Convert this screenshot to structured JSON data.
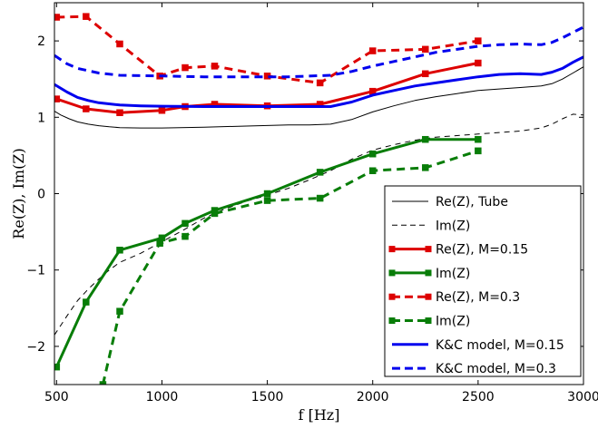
{
  "chart_data": {
    "type": "line",
    "title": "",
    "xlabel": "f [Hz]",
    "ylabel": "Re(Z), Im(Z)",
    "xlim": [
      490,
      3000
    ],
    "ylim": [
      -2.5,
      2.5
    ],
    "x_ticks": [
      "500",
      "1000",
      "1500",
      "2000",
      "2500",
      "3000"
    ],
    "y_ticks": [
      "−2",
      "−1",
      "0",
      "1",
      "2"
    ],
    "grid": false,
    "legend": "bottom-right",
    "series": [
      {
        "name": "Re(Z), Tube",
        "color": "#000000",
        "style": "solid",
        "width": 1,
        "marker": "none",
        "x": [
          490,
          520,
          560,
          600,
          650,
          700,
          750,
          800,
          900,
          1000,
          1200,
          1400,
          1600,
          1700,
          1800,
          1900,
          2000,
          2100,
          2200,
          2300,
          2400,
          2500,
          2600,
          2700,
          2800,
          2850,
          2900,
          2950,
          3000
        ],
        "y": [
          1.08,
          1.03,
          0.98,
          0.94,
          0.91,
          0.89,
          0.875,
          0.865,
          0.86,
          0.86,
          0.87,
          0.885,
          0.9,
          0.9,
          0.91,
          0.97,
          1.07,
          1.15,
          1.22,
          1.27,
          1.31,
          1.35,
          1.37,
          1.39,
          1.41,
          1.44,
          1.5,
          1.58,
          1.66
        ]
      },
      {
        "name": "Im(Z)",
        "color": "#000000",
        "style": "dashed",
        "width": 1,
        "marker": "none",
        "x": [
          490,
          550,
          600,
          650,
          700,
          750,
          800,
          900,
          1000,
          1100,
          1200,
          1300,
          1400,
          1500,
          1600,
          1700,
          1800,
          1900,
          2000,
          2100,
          2200,
          2300,
          2400,
          2500,
          2600,
          2700,
          2800,
          2850,
          2900,
          2950,
          3000
        ],
        "y": [
          -1.85,
          -1.6,
          -1.4,
          -1.25,
          -1.12,
          -1.0,
          -0.9,
          -0.78,
          -0.63,
          -0.48,
          -0.32,
          -0.2,
          -0.1,
          -0.02,
          0.07,
          0.18,
          0.3,
          0.45,
          0.57,
          0.64,
          0.7,
          0.74,
          0.76,
          0.78,
          0.8,
          0.82,
          0.86,
          0.91,
          0.98,
          1.04,
          1.03
        ]
      },
      {
        "name": "Re(Z), M=0.15",
        "color": "#dd0000",
        "style": "solid",
        "width": 3,
        "marker": "square",
        "x": [
          500,
          640,
          800,
          1000,
          1110,
          1250,
          1500,
          1750,
          2000,
          2250,
          2500
        ],
        "y": [
          1.24,
          1.11,
          1.06,
          1.09,
          1.14,
          1.17,
          1.15,
          1.17,
          1.34,
          1.57,
          1.71
        ]
      },
      {
        "name": "Im(Z)",
        "color": "#087d08",
        "style": "solid",
        "width": 3,
        "marker": "square",
        "x": [
          500,
          640,
          800,
          1000,
          1110,
          1250,
          1500,
          1750,
          2000,
          2250,
          2500
        ],
        "y": [
          -2.27,
          -1.42,
          -0.74,
          -0.58,
          -0.39,
          -0.22,
          0.0,
          0.28,
          0.52,
          0.71,
          0.71
        ]
      },
      {
        "name": "Re(Z), M=0.3",
        "color": "#dd0000",
        "style": "dashed",
        "width": 3,
        "marker": "square",
        "x": [
          500,
          640,
          800,
          990,
          1110,
          1250,
          1500,
          1750,
          2000,
          2250,
          2500
        ],
        "y": [
          2.31,
          2.32,
          1.96,
          1.54,
          1.65,
          1.67,
          1.54,
          1.45,
          1.87,
          1.89,
          2.0
        ]
      },
      {
        "name": "Im(Z)",
        "color": "#087d08",
        "style": "dashed",
        "width": 3,
        "marker": "square",
        "x": [
          720,
          800,
          990,
          1110,
          1250,
          1500,
          1750,
          2000,
          2250,
          2500
        ],
        "y": [
          -2.5,
          -1.54,
          -0.65,
          -0.56,
          -0.26,
          -0.09,
          -0.06,
          0.3,
          0.34,
          0.56
        ]
      },
      {
        "name": "K&C model, M=0.15",
        "color": "#0000ee",
        "style": "solid",
        "width": 3,
        "marker": "none",
        "x": [
          490,
          550,
          600,
          650,
          700,
          800,
          900,
          1000,
          1200,
          1400,
          1600,
          1800,
          1900,
          2000,
          2100,
          2200,
          2300,
          2400,
          2500,
          2600,
          2700,
          2800,
          2850,
          2900,
          2950,
          3000
        ],
        "y": [
          1.43,
          1.33,
          1.26,
          1.22,
          1.19,
          1.16,
          1.15,
          1.145,
          1.14,
          1.14,
          1.14,
          1.14,
          1.2,
          1.29,
          1.35,
          1.41,
          1.45,
          1.49,
          1.53,
          1.56,
          1.57,
          1.56,
          1.59,
          1.64,
          1.72,
          1.79
        ]
      },
      {
        "name": "K&C model, M=0.3",
        "color": "#0000ee",
        "style": "dashed",
        "width": 3,
        "marker": "none",
        "x": [
          490,
          550,
          600,
          700,
          800,
          1000,
          1200,
          1400,
          1600,
          1800,
          1900,
          2000,
          2100,
          2200,
          2300,
          2400,
          2500,
          2600,
          2700,
          2800,
          2850,
          2900,
          2950,
          3000
        ],
        "y": [
          1.81,
          1.7,
          1.64,
          1.58,
          1.55,
          1.54,
          1.53,
          1.53,
          1.53,
          1.55,
          1.6,
          1.67,
          1.73,
          1.79,
          1.85,
          1.89,
          1.93,
          1.95,
          1.96,
          1.95,
          1.98,
          2.04,
          2.11,
          2.18
        ]
      }
    ]
  }
}
